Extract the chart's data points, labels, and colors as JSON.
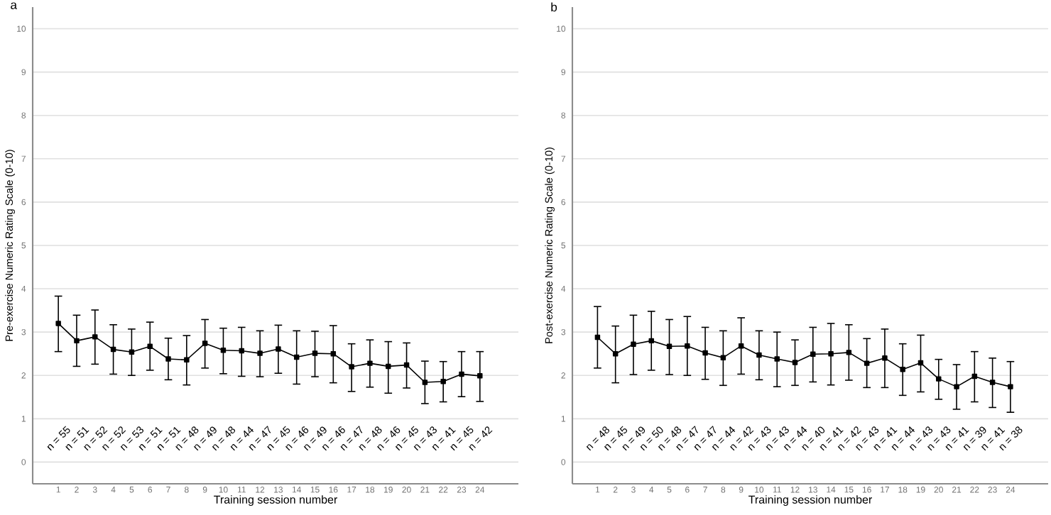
{
  "chart_data": [
    {
      "type": "line",
      "title": "a",
      "xlabel": "Training session number",
      "ylabel": "Pre-exercise Numeric Rating Scale (0-10)",
      "categories": [
        "1",
        "2",
        "3",
        "4",
        "5",
        "6",
        "7",
        "8",
        "9",
        "10",
        "11",
        "12",
        "13",
        "14",
        "15",
        "16",
        "17",
        "18",
        "19",
        "20",
        "21",
        "22",
        "23",
        "24"
      ],
      "series": [
        {
          "color": "#000000",
          "values": [
            3.2,
            2.8,
            2.89,
            2.6,
            2.54,
            2.67,
            2.38,
            2.36,
            2.74,
            2.58,
            2.57,
            2.51,
            2.61,
            2.42,
            2.51,
            2.5,
            2.2,
            2.28,
            2.21,
            2.24,
            1.84,
            1.86,
            2.03,
            1.99
          ],
          "errors": [
            [
              2.55,
              3.83
            ],
            [
              2.21,
              3.39
            ],
            [
              2.26,
              3.51
            ],
            [
              2.03,
              3.17
            ],
            [
              2.0,
              3.07
            ],
            [
              2.12,
              3.23
            ],
            [
              1.9,
              2.86
            ],
            [
              1.78,
              2.92
            ],
            [
              2.17,
              3.29
            ],
            [
              2.04,
              3.09
            ],
            [
              1.98,
              3.11
            ],
            [
              1.97,
              3.03
            ],
            [
              2.05,
              3.16
            ],
            [
              1.8,
              3.03
            ],
            [
              1.97,
              3.02
            ],
            [
              1.83,
              3.15
            ],
            [
              1.63,
              2.73
            ],
            [
              1.73,
              2.82
            ],
            [
              1.59,
              2.78
            ],
            [
              1.71,
              2.75
            ],
            [
              1.35,
              2.33
            ],
            [
              1.39,
              2.32
            ],
            [
              1.51,
              2.55
            ],
            [
              1.4,
              2.55
            ]
          ]
        }
      ],
      "ylim": [
        -0.5,
        10.5
      ],
      "yticks": [
        0,
        1,
        2,
        3,
        4,
        5,
        6,
        7,
        8,
        9,
        10
      ],
      "grid": "y",
      "marker": "square",
      "line_style": "solid",
      "annotations": [
        "n = 55",
        "n = 51",
        "n = 52",
        "n = 52",
        "n = 53",
        "n = 51",
        "n = 51",
        "n = 48",
        "n = 49",
        "n = 48",
        "n = 44",
        "n = 47",
        "n = 45",
        "n = 46",
        "n = 49",
        "n = 46",
        "n = 47",
        "n = 48",
        "n = 46",
        "n = 45",
        "n = 43",
        "n = 41",
        "n = 45",
        "n = 42"
      ]
    },
    {
      "type": "line",
      "title": "b",
      "xlabel": "Training session number",
      "ylabel": "Post-exercise Numeric Rating Scale (0-10)",
      "categories": [
        "1",
        "2",
        "3",
        "4",
        "5",
        "6",
        "7",
        "8",
        "9",
        "10",
        "11",
        "12",
        "13",
        "14",
        "15",
        "16",
        "17",
        "18",
        "19",
        "20",
        "21",
        "22",
        "23",
        "24"
      ],
      "series": [
        {
          "color": "#000000",
          "values": [
            2.88,
            2.5,
            2.72,
            2.8,
            2.67,
            2.68,
            2.52,
            2.41,
            2.68,
            2.47,
            2.38,
            2.3,
            2.49,
            2.5,
            2.53,
            2.28,
            2.4,
            2.14,
            2.29,
            1.92,
            1.74,
            1.98,
            1.84,
            1.74
          ],
          "errors": [
            [
              2.17,
              3.59
            ],
            [
              1.83,
              3.14
            ],
            [
              2.02,
              3.39
            ],
            [
              2.12,
              3.48
            ],
            [
              2.02,
              3.29
            ],
            [
              2.0,
              3.36
            ],
            [
              1.91,
              3.11
            ],
            [
              1.77,
              3.03
            ],
            [
              2.03,
              3.33
            ],
            [
              1.9,
              3.03
            ],
            [
              1.74,
              3.0
            ],
            [
              1.77,
              2.82
            ],
            [
              1.85,
              3.11
            ],
            [
              1.78,
              3.2
            ],
            [
              1.89,
              3.17
            ],
            [
              1.72,
              2.85
            ],
            [
              1.72,
              3.07
            ],
            [
              1.54,
              2.73
            ],
            [
              1.62,
              2.93
            ],
            [
              1.45,
              2.37
            ],
            [
              1.22,
              2.25
            ],
            [
              1.39,
              2.55
            ],
            [
              1.26,
              2.4
            ],
            [
              1.15,
              2.32
            ]
          ]
        }
      ],
      "ylim": [
        -0.5,
        10.5
      ],
      "yticks": [
        0,
        1,
        2,
        3,
        4,
        5,
        6,
        7,
        8,
        9,
        10
      ],
      "grid": "y",
      "marker": "square",
      "line_style": "solid",
      "annotations": [
        "n = 48",
        "n = 45",
        "n = 49",
        "n = 50",
        "n = 48",
        "n = 47",
        "n = 47",
        "n = 44",
        "n = 42",
        "n = 43",
        "n = 43",
        "n = 44",
        "n = 40",
        "n = 41",
        "n = 42",
        "n = 43",
        "n = 41",
        "n = 44",
        "n = 43",
        "n = 43",
        "n = 41",
        "n = 39",
        "n = 41",
        "n = 38"
      ]
    }
  ]
}
